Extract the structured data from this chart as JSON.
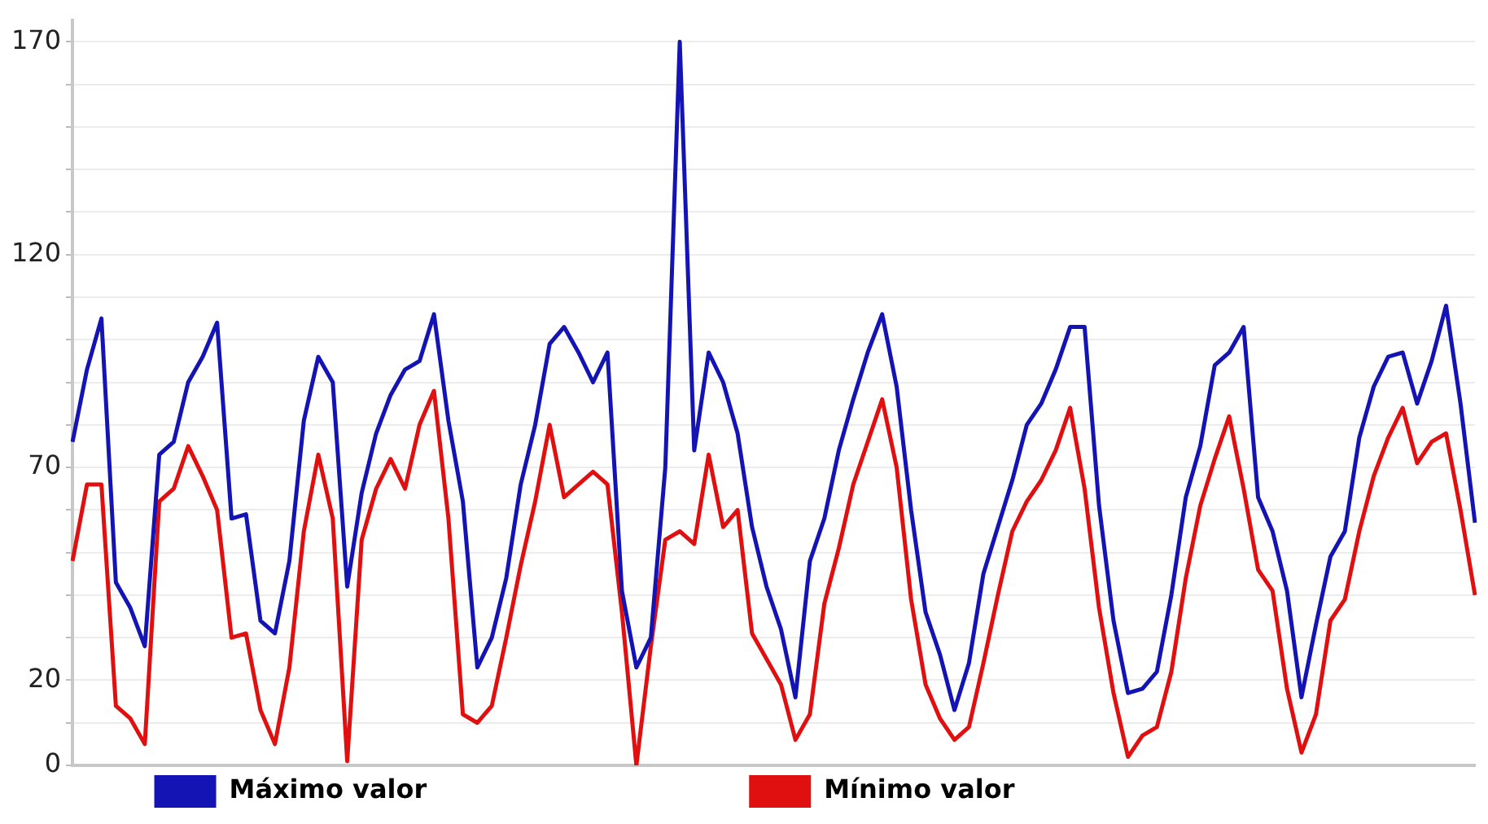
{
  "chart_data": {
    "type": "line",
    "categories": [
      null,
      null,
      null,
      null,
      null,
      null,
      null,
      null,
      null,
      null,
      null,
      null,
      null,
      null,
      null,
      null,
      null,
      null,
      null,
      null,
      null,
      null,
      null,
      null,
      null,
      null,
      null,
      null,
      null,
      null,
      null,
      null,
      null,
      null,
      null,
      null,
      null,
      null,
      null,
      null,
      null,
      null,
      null,
      null,
      null,
      null,
      null,
      null,
      null,
      null,
      null,
      null,
      null,
      null,
      null,
      null,
      null,
      null,
      null,
      null,
      null,
      null,
      null,
      null,
      null,
      null,
      null,
      null,
      null,
      null,
      null,
      null,
      null,
      null,
      null,
      null,
      null,
      null,
      null,
      null,
      null,
      null,
      null,
      null,
      null,
      null,
      null,
      null,
      null,
      null,
      null,
      null,
      null,
      null,
      null,
      null,
      null,
      null
    ],
    "series": [
      {
        "name": "Máximo valor",
        "color": "#1414b4",
        "values": [
          76,
          93,
          105,
          43,
          37,
          28,
          73,
          76,
          90,
          96,
          104,
          58,
          59,
          34,
          31,
          48,
          81,
          96,
          90,
          42,
          64,
          78,
          87,
          93,
          95,
          106,
          81,
          62,
          23,
          30,
          44,
          66,
          80,
          99,
          103,
          97,
          90,
          97,
          41,
          23,
          30,
          70,
          170,
          74,
          97,
          90,
          78,
          56,
          42,
          32,
          16,
          48,
          58,
          74,
          86,
          97,
          106,
          89,
          60,
          36,
          26,
          13,
          24,
          45,
          56,
          67,
          80,
          85,
          93,
          103,
          103,
          61,
          34,
          17,
          18,
          22,
          40,
          63,
          75,
          94,
          97,
          103,
          63,
          55,
          41,
          16,
          33,
          49,
          55,
          77,
          89,
          96,
          97,
          85,
          95,
          108,
          85,
          57
        ]
      },
      {
        "name": "Mínimo valor",
        "color": "#e01010",
        "values": [
          48,
          66,
          66,
          14,
          11,
          5,
          62,
          65,
          75,
          68,
          60,
          30,
          31,
          13,
          5,
          23,
          55,
          73,
          58,
          1,
          53,
          65,
          72,
          65,
          80,
          88,
          58,
          12,
          10,
          14,
          30,
          47,
          62,
          80,
          63,
          66,
          69,
          66,
          36,
          0,
          28,
          53,
          55,
          52,
          73,
          56,
          60,
          31,
          25,
          19,
          6,
          12,
          38,
          51,
          66,
          76,
          86,
          70,
          39,
          19,
          11,
          6,
          9,
          24,
          40,
          55,
          62,
          67,
          74,
          84,
          65,
          37,
          17,
          2,
          7,
          9,
          22,
          44,
          61,
          72,
          82,
          65,
          46,
          41,
          18,
          3,
          12,
          34,
          39,
          55,
          68,
          77,
          84,
          71,
          76,
          78,
          60,
          40
        ]
      }
    ],
    "ylim": [
      0,
      175
    ],
    "yticks": [
      0,
      {
        "value": 10,
        "label": null
      },
      20,
      {
        "value": 30,
        "label": null
      },
      {
        "value": 40,
        "label": null
      },
      {
        "value": 50,
        "label": null
      },
      {
        "value": 60,
        "label": null
      },
      70,
      {
        "value": 80,
        "label": null
      },
      {
        "value": 90,
        "label": null
      },
      {
        "value": 100,
        "label": null
      },
      {
        "value": 110,
        "label": null
      },
      120,
      {
        "value": 130,
        "label": null
      },
      {
        "value": 140,
        "label": null
      },
      {
        "value": 150,
        "label": null
      },
      {
        "value": 160,
        "label": null
      },
      170
    ],
    "grid": "y",
    "legend": "bottom",
    "tick_labels": "y",
    "marker": "none",
    "line_style": "solid"
  }
}
